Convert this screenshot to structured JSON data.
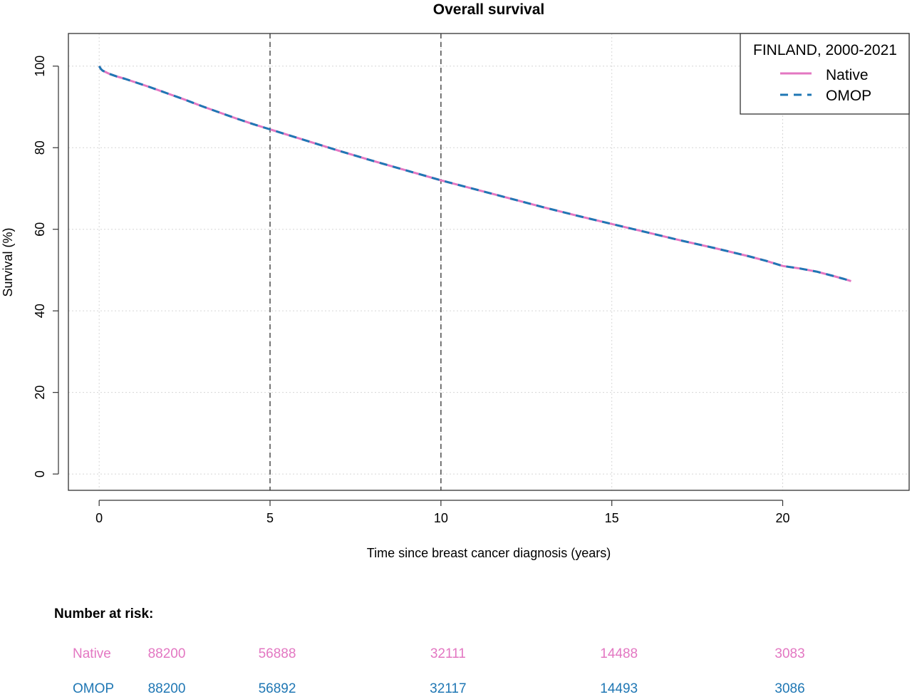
{
  "chart_data": {
    "type": "line",
    "title": "Overall survival",
    "xlabel": "Time since breast cancer diagnosis (years)",
    "ylabel": "Survival (%)",
    "xlim": [
      -0.9,
      23.7
    ],
    "ylim": [
      -4,
      108
    ],
    "xticks": [
      0,
      5,
      10,
      15,
      20
    ],
    "yticks": [
      0,
      20,
      40,
      60,
      80,
      100
    ],
    "grid": true,
    "reference_lines_x": [
      5,
      10
    ],
    "legend": {
      "title": "FINLAND, 2000-2021",
      "position": "top-right",
      "entries": [
        "Native",
        "OMOP"
      ]
    },
    "series": [
      {
        "name": "Native",
        "color": "#e377c2",
        "style": "solid",
        "x": [
          0,
          0.05,
          0.1,
          0.2,
          0.3,
          0.5,
          0.75,
          1,
          1.5,
          2,
          2.5,
          3,
          3.5,
          4,
          4.5,
          5,
          6,
          7,
          8,
          9,
          10,
          11,
          12,
          13,
          14,
          15,
          16,
          17,
          18,
          19,
          19.5,
          20,
          20.5,
          21,
          21.5,
          21.8,
          22
        ],
        "y": [
          100,
          99.3,
          98.9,
          98.5,
          98.1,
          97.5,
          96.9,
          96.2,
          94.8,
          93.3,
          91.8,
          90.2,
          88.7,
          87.2,
          85.8,
          84.5,
          81.9,
          79.3,
          76.8,
          74.4,
          72.0,
          69.8,
          67.6,
          65.4,
          63.3,
          61.3,
          59.3,
          57.3,
          55.4,
          53.4,
          52.3,
          51.0,
          50.4,
          49.6,
          48.5,
          47.8,
          47.3
        ]
      },
      {
        "name": "OMOP",
        "color": "#1f77b4",
        "style": "dashed",
        "x": [
          0,
          0.05,
          0.1,
          0.2,
          0.3,
          0.5,
          0.75,
          1,
          1.5,
          2,
          2.5,
          3,
          3.5,
          4,
          4.5,
          5,
          6,
          7,
          8,
          9,
          10,
          11,
          12,
          13,
          14,
          15,
          16,
          17,
          18,
          19,
          19.5,
          20,
          20.5,
          21,
          21.5,
          21.8,
          22
        ],
        "y": [
          100,
          99.3,
          98.9,
          98.5,
          98.1,
          97.5,
          96.9,
          96.2,
          94.8,
          93.3,
          91.8,
          90.2,
          88.7,
          87.2,
          85.8,
          84.5,
          81.9,
          79.3,
          76.8,
          74.4,
          72.0,
          69.8,
          67.6,
          65.4,
          63.3,
          61.3,
          59.3,
          57.3,
          55.4,
          53.4,
          52.3,
          51.0,
          50.4,
          49.6,
          48.5,
          47.8,
          47.3
        ]
      }
    ]
  },
  "risk_table": {
    "heading": "Number at risk:",
    "rows": [
      {
        "label": "Native",
        "color": "#e377c2",
        "counts": [
          "88200",
          "56888",
          "32111",
          "14488",
          "3083"
        ]
      },
      {
        "label": "OMOP",
        "color": "#1f77b4",
        "counts": [
          "88200",
          "56892",
          "32117",
          "14493",
          "3086"
        ]
      }
    ]
  }
}
